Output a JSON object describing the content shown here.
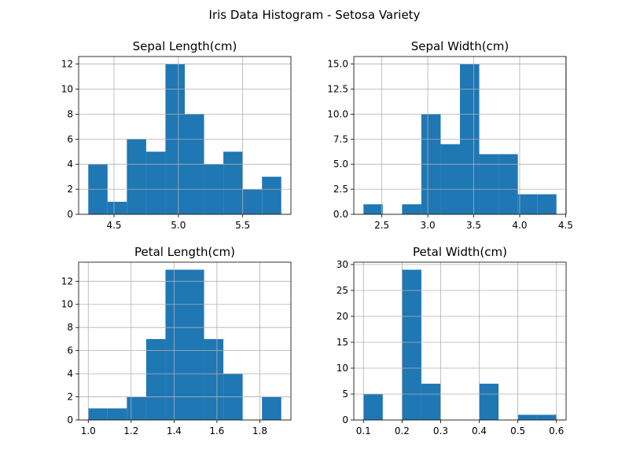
{
  "figure": {
    "title": "Iris Data Histogram - Setosa Variety",
    "bar_color": "#1f77b4",
    "grid_color": "#b0b0b0"
  },
  "chart_data": [
    {
      "type": "bar",
      "title": "Sepal Length(cm)",
      "bin_edges": [
        4.3,
        4.45,
        4.6,
        4.75,
        4.9,
        5.05,
        5.2,
        5.35,
        5.5,
        5.65,
        5.8
      ],
      "values": [
        4,
        1,
        6,
        5,
        12,
        8,
        4,
        5,
        2,
        3
      ],
      "xlim": [
        4.225,
        5.875
      ],
      "ylim": [
        0,
        12.6
      ],
      "xticks": [
        4.5,
        5.0,
        5.5
      ],
      "xtick_labels": [
        "4.5",
        "5.0",
        "5.5"
      ],
      "yticks": [
        0,
        2,
        4,
        6,
        8,
        10,
        12
      ],
      "ytick_labels": [
        "0",
        "2",
        "4",
        "6",
        "8",
        "10",
        "12"
      ],
      "grid": true
    },
    {
      "type": "bar",
      "title": "Sepal Width(cm)",
      "bin_edges": [
        2.3,
        2.51,
        2.72,
        2.93,
        3.14,
        3.35,
        3.56,
        3.77,
        3.98,
        4.19,
        4.4
      ],
      "values": [
        1,
        0,
        1,
        10,
        7,
        15,
        6,
        6,
        2,
        2
      ],
      "xlim": [
        2.195,
        4.505
      ],
      "ylim": [
        0,
        15.75
      ],
      "xticks": [
        2.5,
        3.0,
        3.5,
        4.0,
        4.5
      ],
      "xtick_labels": [
        "2.5",
        "3.0",
        "3.5",
        "4.0",
        "4.5"
      ],
      "yticks": [
        0,
        2.5,
        5.0,
        7.5,
        10.0,
        12.5,
        15.0
      ],
      "ytick_labels": [
        "0.0",
        "2.5",
        "5.0",
        "7.5",
        "10.0",
        "12.5",
        "15.0"
      ],
      "grid": true
    },
    {
      "type": "bar",
      "title": "Petal Length(cm)",
      "bin_edges": [
        1.0,
        1.09,
        1.18,
        1.27,
        1.36,
        1.45,
        1.54,
        1.63,
        1.72,
        1.81,
        1.9
      ],
      "values": [
        1,
        1,
        2,
        7,
        13,
        13,
        7,
        4,
        0,
        2
      ],
      "xlim": [
        0.955,
        1.945
      ],
      "ylim": [
        0,
        13.65
      ],
      "xticks": [
        1.0,
        1.2,
        1.4,
        1.6,
        1.8
      ],
      "xtick_labels": [
        "1.0",
        "1.2",
        "1.4",
        "1.6",
        "1.8"
      ],
      "yticks": [
        0,
        2,
        4,
        6,
        8,
        10,
        12
      ],
      "ytick_labels": [
        "0",
        "2",
        "4",
        "6",
        "8",
        "10",
        "12"
      ],
      "grid": true
    },
    {
      "type": "bar",
      "title": "Petal Width(cm)",
      "bin_edges": [
        0.1,
        0.15,
        0.2,
        0.25,
        0.3,
        0.35,
        0.4,
        0.45,
        0.5,
        0.55,
        0.6
      ],
      "values": [
        5,
        0,
        29,
        7,
        0,
        0,
        7,
        0,
        1,
        1
      ],
      "xlim": [
        0.075,
        0.625
      ],
      "ylim": [
        0,
        30.45
      ],
      "xticks": [
        0.1,
        0.2,
        0.3,
        0.4,
        0.5,
        0.6
      ],
      "xtick_labels": [
        "0.1",
        "0.2",
        "0.3",
        "0.4",
        "0.5",
        "0.6"
      ],
      "yticks": [
        0,
        5,
        10,
        15,
        20,
        25,
        30
      ],
      "ytick_labels": [
        "0",
        "5",
        "10",
        "15",
        "20",
        "25",
        "30"
      ],
      "grid": true
    }
  ]
}
